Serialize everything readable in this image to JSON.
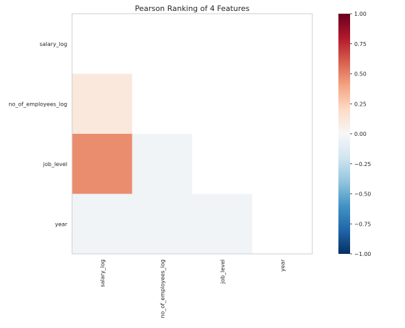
{
  "chart_data": {
    "type": "heatmap",
    "title": "Pearson Ranking of 4 Features",
    "features": [
      "salary_log",
      "no_of_employees_log",
      "job_level",
      "year"
    ],
    "matrix": [
      [
        null,
        null,
        null,
        null
      ],
      [
        0.11,
        null,
        null,
        null
      ],
      [
        0.47,
        -0.03,
        null,
        null
      ],
      [
        -0.03,
        -0.03,
        -0.03,
        null
      ]
    ],
    "colorbar": {
      "vmin": -1.0,
      "vmax": 1.0,
      "ticks": [
        1.0,
        0.75,
        0.5,
        0.25,
        0.0,
        -0.25,
        -0.5,
        -0.75,
        -1.0
      ],
      "tick_labels": [
        "1.00",
        "0.75",
        "0.50",
        "0.25",
        "0.00",
        "−0.25",
        "−0.50",
        "−0.75",
        "−1.00"
      ]
    },
    "colormap": "RdBu_r",
    "colors": {
      "stops": [
        "#053061",
        "#2166ac",
        "#4393c3",
        "#92c5de",
        "#d1e5f0",
        "#f7f7f7",
        "#fddbc7",
        "#f4a582",
        "#d6604d",
        "#b2182b",
        "#67001f"
      ]
    },
    "grid": false,
    "legend": "colorbar-right"
  }
}
